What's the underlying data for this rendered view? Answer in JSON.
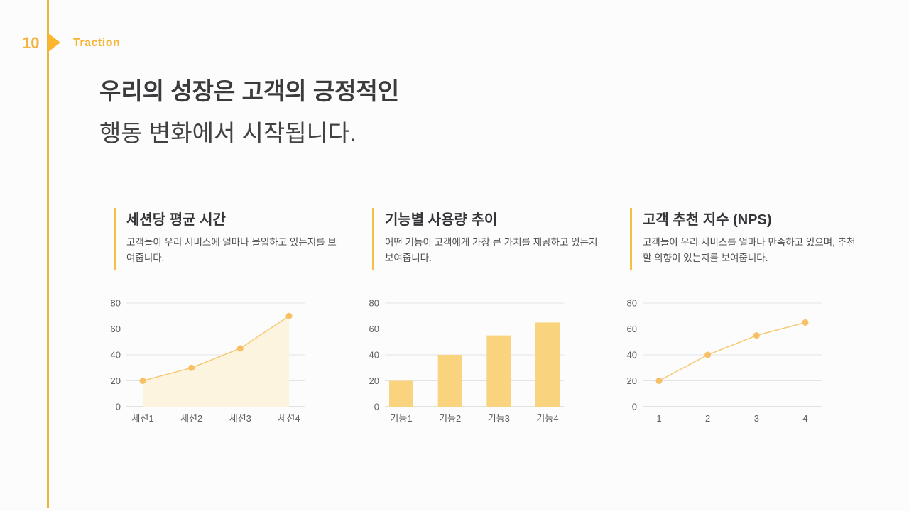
{
  "page": {
    "number": "10",
    "tag": "Traction"
  },
  "title": {
    "line1": "우리의 성장은 고객의 긍정적인",
    "line2": "행동 변화에서 시작됩니다."
  },
  "colors": {
    "accent_yellow": "#f8b535",
    "section_bar": "#f8bd44",
    "gridline": "#e4e4e4",
    "axis_base": "#c8c8c8",
    "tick_text": "#5e5e5e",
    "bar_fill": "#fad37e",
    "line_stroke": "#f6ca74",
    "marker_fill": "#f7c065",
    "area_fill": "#fcf4df",
    "title_text": "#3b3b3e"
  },
  "chart_data": [
    {
      "type": "area",
      "title": "세션당 평균 시간",
      "description": "고객들이 우리 서비스에 얼마나 몰입하고 있는지를 보여줍니다.",
      "categories": [
        "세션1",
        "세션2",
        "세션3",
        "세션4"
      ],
      "values": [
        20,
        30,
        45,
        70
      ],
      "ylim": [
        0,
        80
      ],
      "yticks": [
        0,
        20,
        40,
        60,
        80
      ],
      "grid": true,
      "legend": "none"
    },
    {
      "type": "bar",
      "title": "기능별 사용량 추이",
      "description": "어떤 기능이 고객에게 가장 큰 가치를 제공하고 있는지 보여줍니다.",
      "categories": [
        "기능1",
        "기능2",
        "기능3",
        "기능4"
      ],
      "values": [
        20,
        40,
        55,
        65
      ],
      "ylim": [
        0,
        80
      ],
      "yticks": [
        0,
        20,
        40,
        60,
        80
      ],
      "grid": true,
      "legend": "none"
    },
    {
      "type": "line",
      "title": "고객 추천 지수 (NPS)",
      "description": "고객들이 우리 서비스를 얼마나 만족하고 있으며, 추천할 의향이 있는지를 보여줍니다.",
      "categories": [
        "1",
        "2",
        "3",
        "4"
      ],
      "values": [
        20,
        40,
        55,
        65
      ],
      "ylim": [
        0,
        80
      ],
      "yticks": [
        0,
        20,
        40,
        60,
        80
      ],
      "grid": true,
      "legend": "none"
    }
  ]
}
